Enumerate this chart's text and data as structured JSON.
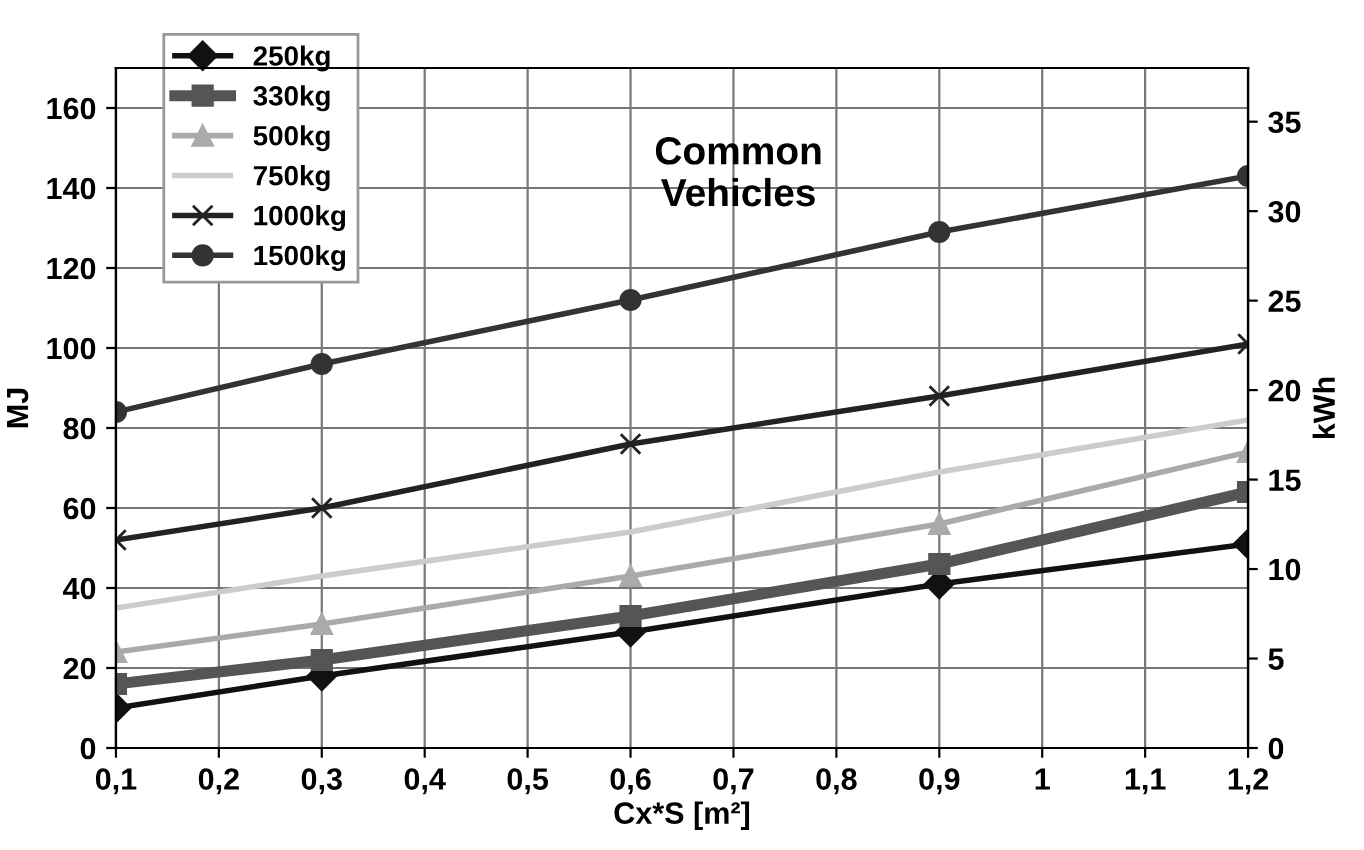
{
  "chart_data": {
    "type": "line",
    "title": "Common\nVehicles",
    "xlabel": "Cx*S [m²]",
    "ylabel": "MJ",
    "y2label": "kWh",
    "x": [
      0.1,
      0.3,
      0.6,
      0.9,
      1.2
    ],
    "series": [
      {
        "name": "250kg",
        "color": "#111111",
        "marker": "diamond",
        "values": [
          10,
          18,
          29,
          41,
          51
        ]
      },
      {
        "name": "330kg",
        "color": "#555555",
        "marker": "square",
        "values": [
          16,
          22,
          33,
          46,
          64
        ]
      },
      {
        "name": "500kg",
        "color": "#aaaaaa",
        "marker": "triangle",
        "values": [
          24,
          31,
          43,
          56,
          74
        ]
      },
      {
        "name": "750kg",
        "color": "#cccccc",
        "marker": "none",
        "values": [
          35,
          43,
          54,
          69,
          82
        ]
      },
      {
        "name": "1000kg",
        "color": "#222222",
        "marker": "cross",
        "values": [
          52,
          60,
          76,
          88,
          101
        ]
      },
      {
        "name": "1500kg",
        "color": "#333333",
        "marker": "circle",
        "values": [
          84,
          96,
          112,
          129,
          143
        ]
      }
    ],
    "xlim": [
      0.1,
      1.2
    ],
    "xticks": [
      {
        "value": 0.1,
        "label": "0,1"
      },
      {
        "value": 0.2,
        "label": "0,2"
      },
      {
        "value": 0.3,
        "label": "0,3"
      },
      {
        "value": 0.4,
        "label": "0,4"
      },
      {
        "value": 0.5,
        "label": "0,5"
      },
      {
        "value": 0.6,
        "label": "0,6"
      },
      {
        "value": 0.7,
        "label": "0,7"
      },
      {
        "value": 0.8,
        "label": "0,8"
      },
      {
        "value": 0.9,
        "label": "0,9"
      },
      {
        "value": 1,
        "label": "1"
      },
      {
        "value": 1.1,
        "label": "1,1"
      },
      {
        "value": 1.2,
        "label": "1,2"
      }
    ],
    "ylim": [
      0,
      170
    ],
    "yticks": [
      0,
      20,
      40,
      60,
      80,
      100,
      120,
      140,
      160
    ],
    "y2lim": [
      0,
      38
    ],
    "y2ticks": [
      0,
      5,
      10,
      15,
      20,
      25,
      30,
      35
    ],
    "grid": true,
    "legend": "top left",
    "line_style": "solid"
  }
}
